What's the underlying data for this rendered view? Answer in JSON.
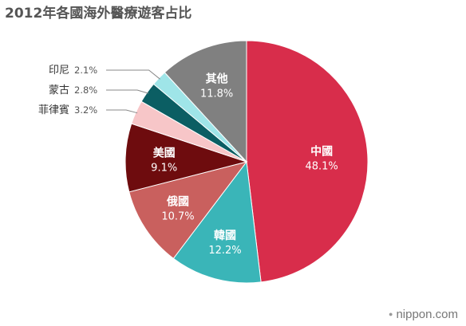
{
  "chart_data": {
    "type": "pie",
    "title": "2012年各國海外醫療遊客占比",
    "slices": [
      {
        "label": "中國",
        "value": 48.1,
        "display": "48.1%",
        "color": "#d82d4b",
        "label_position": "inside"
      },
      {
        "label": "韓國",
        "value": 12.2,
        "display": "12.2%",
        "color": "#3ab5b8",
        "label_position": "inside"
      },
      {
        "label": "俄國",
        "value": 10.7,
        "display": "10.7%",
        "color": "#c9605e",
        "label_position": "inside"
      },
      {
        "label": "美國",
        "value": 9.1,
        "display": "9.1%",
        "color": "#6e0c0e",
        "label_position": "inside"
      },
      {
        "label": "菲律賓",
        "value": 3.2,
        "display": "3.2%",
        "color": "#f7c6c8",
        "label_position": "outside"
      },
      {
        "label": "蒙古",
        "value": 2.8,
        "display": "2.8%",
        "color": "#0b5e63",
        "label_position": "outside"
      },
      {
        "label": "印尼",
        "value": 2.1,
        "display": "2.1%",
        "color": "#9fe5e8",
        "label_position": "outside"
      },
      {
        "label": "其他",
        "value": 11.8,
        "display": "11.8%",
        "color": "#808080",
        "label_position": "inside"
      }
    ],
    "start": "12 o'clock",
    "direction": "clockwise"
  },
  "watermark": {
    "text": "nippon.com",
    "dot": "●"
  }
}
